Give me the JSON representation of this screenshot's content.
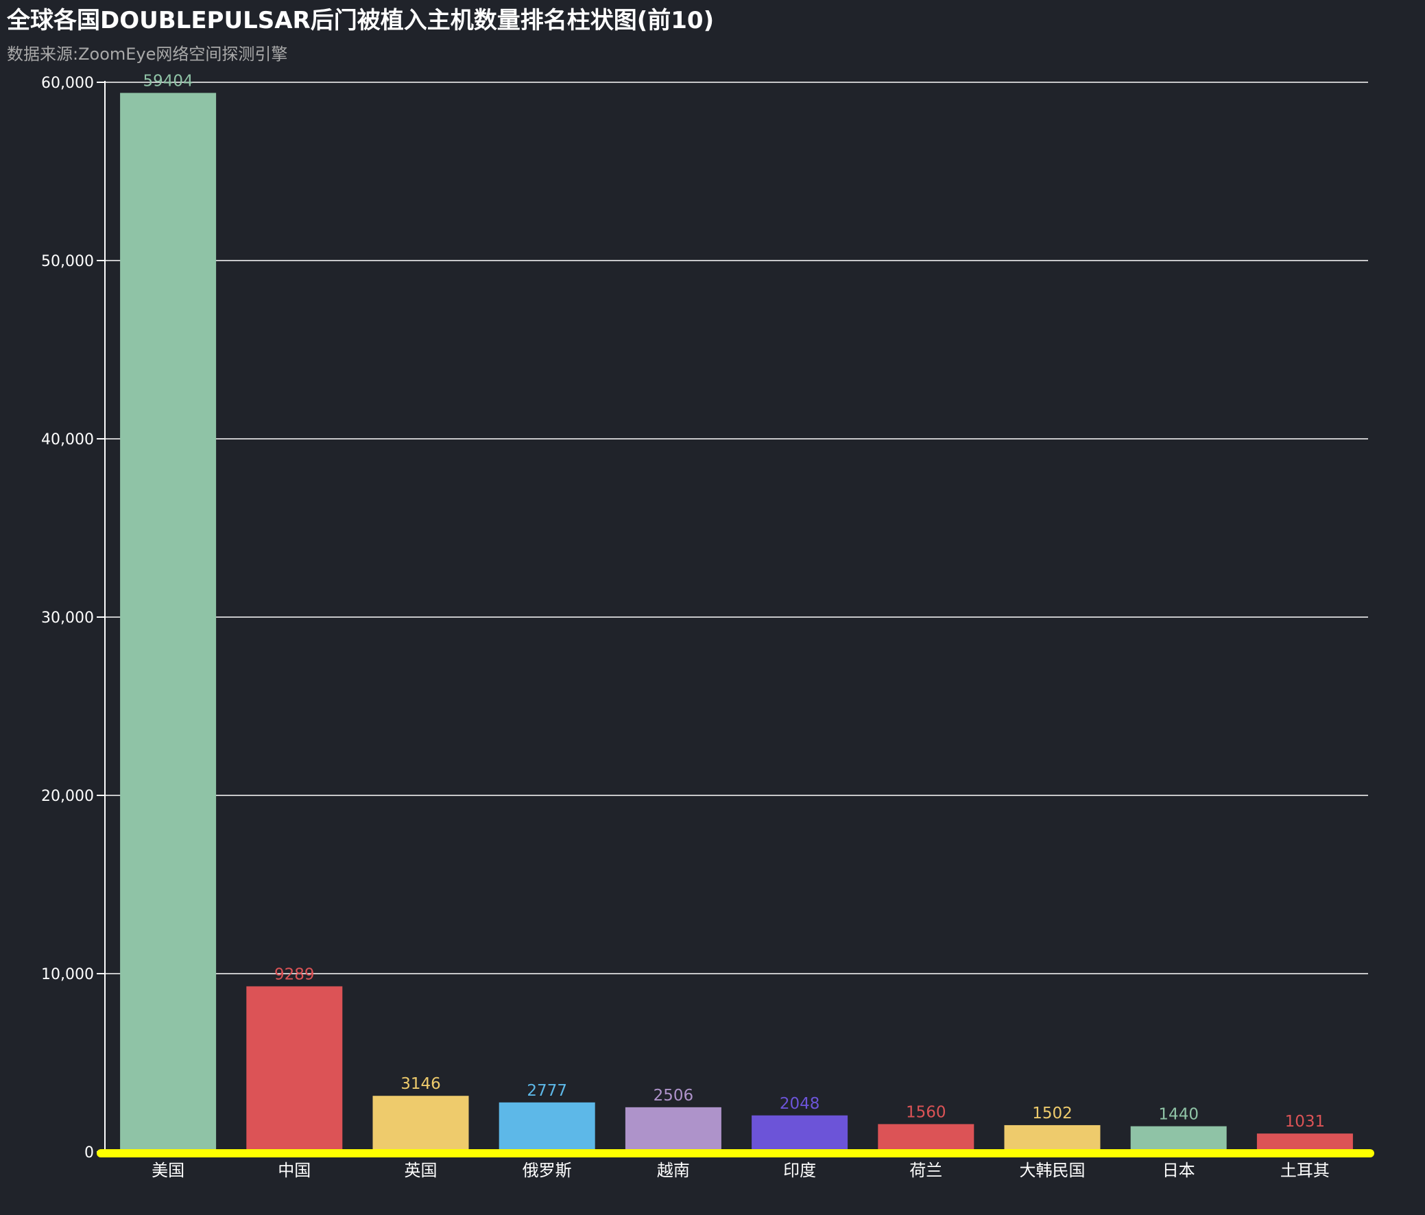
{
  "chart_data": {
    "type": "bar",
    "title": "全球各国DOUBLEPULSAR后门被植入主机数量排名柱状图(前10)",
    "subtitle": "数据来源:ZoomEye网络空间探测引擎",
    "categories": [
      "美国",
      "中国",
      "英国",
      "俄罗斯",
      "越南",
      "印度",
      "荷兰",
      "大韩民国",
      "日本",
      "土耳其"
    ],
    "values": [
      59404,
      9289,
      3146,
      2777,
      2506,
      2048,
      1560,
      1502,
      1440,
      1031
    ],
    "data_labels": [
      "59404",
      "9289",
      "3146",
      "2777",
      "2506",
      "2048",
      "1560",
      "1502",
      "1440",
      "1031"
    ],
    "colors": [
      "#8fc3a6",
      "#dc5356",
      "#eecb6c",
      "#5db8e8",
      "#ae93ca",
      "#6c54d8",
      "#dc5356",
      "#eecb6c",
      "#8fc3a6",
      "#dc5356"
    ],
    "ylim": [
      0,
      60000
    ],
    "yticks": [
      0,
      10000,
      20000,
      30000,
      40000,
      50000,
      60000
    ],
    "ytick_labels": [
      "0",
      "10,000",
      "20,000",
      "30,000",
      "40,000",
      "50,000",
      "60,000"
    ],
    "xlabel": "",
    "ylabel": "",
    "grid": true,
    "legend": false,
    "axis_line_color": "#ffff00",
    "grid_color": "#ffffff",
    "text_color": "#ffffff",
    "subtitle_color": "#a9a9a9",
    "background": "#20232a"
  }
}
